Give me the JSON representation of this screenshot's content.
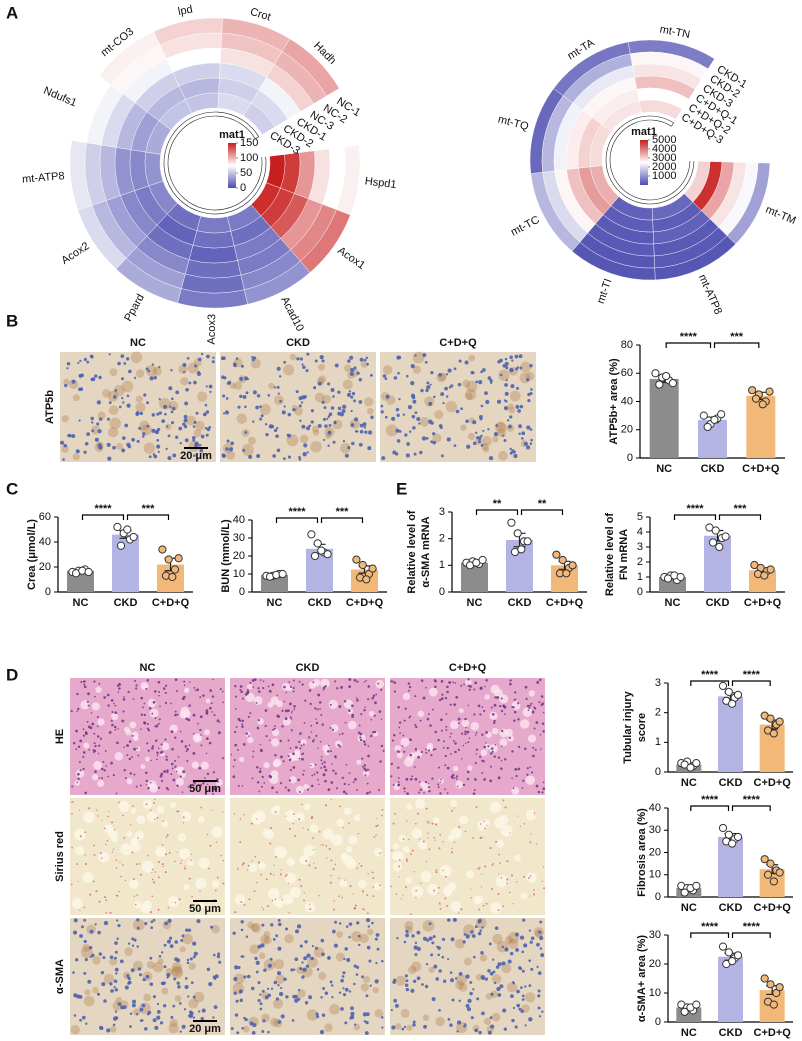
{
  "panels": [
    "A",
    "B",
    "C",
    "D",
    "E"
  ],
  "heatmaps": [
    {
      "legend_title": "mat1",
      "colorlim": [
        0,
        150
      ],
      "ticks": [
        0,
        50,
        100,
        150
      ],
      "colors": [
        "#4b4bb0",
        "#ffffff",
        "#c81e1e"
      ],
      "samples": [
        "NC-1",
        "NC-2",
        "NC-3",
        "CKD-1",
        "CKD-2",
        "CKD-3"
      ],
      "genes": [
        "Hspd1",
        "Acox1",
        "Acad10",
        "Acox3",
        "Ppard",
        "Acox2",
        "mt-ATP8",
        "Ndufs1",
        "mt-CO3",
        "lpd",
        "Crot",
        "Hadh"
      ],
      "values": [
        [
          80,
          75,
          85,
          110,
          140,
          150
        ],
        [
          120,
          115,
          110,
          130,
          140,
          145
        ],
        [
          30,
          25,
          20,
          20,
          15,
          20
        ],
        [
          20,
          15,
          15,
          10,
          15,
          20
        ],
        [
          40,
          35,
          25,
          15,
          10,
          15
        ],
        [
          60,
          45,
          35,
          25,
          20,
          25
        ],
        [
          65,
          55,
          45,
          30,
          25,
          30
        ],
        [
          75,
          70,
          60,
          45,
          35,
          40
        ],
        [
          80,
          78,
          70,
          55,
          45,
          50
        ],
        [
          90,
          85,
          75,
          55,
          45,
          50
        ],
        [
          100,
          95,
          85,
          60,
          55,
          60
        ],
        [
          105,
          100,
          90,
          70,
          60,
          55
        ]
      ]
    },
    {
      "legend_title": "mat1",
      "colorlim": [
        0,
        5000
      ],
      "ticks": [
        1000,
        2000,
        3000,
        4000,
        5000
      ],
      "colors": [
        "#4b4bb0",
        "#ffffff",
        "#c81e1e"
      ],
      "samples": [
        "CKD-1",
        "CKD-2",
        "CKD-3",
        "C+D+Q-1",
        "C+D+Q-2",
        "C+D+Q-3"
      ],
      "genes": [
        "mt-TM",
        "mt-ATP8",
        "mt-TI",
        "mt-TC",
        "mt-TQ",
        "mt-TA",
        "mt-TN"
      ],
      "values": [
        [
          1200,
          2400,
          2800,
          3500,
          4800,
          3000
        ],
        [
          150,
          200,
          200,
          300,
          250,
          400
        ],
        [
          150,
          150,
          200,
          200,
          250,
          300
        ],
        [
          1500,
          2000,
          2600,
          3200,
          3600,
          3400
        ],
        [
          400,
          1500,
          2300,
          2700,
          3000,
          2900
        ],
        [
          600,
          1400,
          2200,
          2600,
          2700,
          2800
        ],
        [
          700,
          2600,
          2800,
          3200,
          2500,
          2900
        ]
      ]
    }
  ],
  "micrographs": [
    {
      "columns": [
        "NC",
        "CKD",
        "C+D+Q"
      ],
      "rows": [
        "ATP5b"
      ],
      "scale_bars": [
        "20 μm"
      ]
    },
    {
      "columns": [
        "NC",
        "CKD",
        "C+D+Q"
      ],
      "rows": [
        "HE",
        "Sirius red",
        "α-SMA"
      ],
      "scale_bars": [
        "50 μm",
        "50 μm",
        "20 μm"
      ]
    }
  ],
  "chart_data": [
    {
      "type": "bar",
      "ylabel": [
        "ATP5b+ area (%)"
      ],
      "categories": [
        "NC",
        "CKD",
        "C+D+Q"
      ],
      "colors": [
        "#8c8c8c",
        "#b4b4e4",
        "#f2b878"
      ],
      "values": [
        56,
        27,
        44
      ],
      "errors": [
        2.5,
        2,
        2.5
      ],
      "points": [
        [
          60,
          57,
          55,
          52,
          58,
          53
        ],
        [
          30,
          24,
          28,
          22,
          27,
          31
        ],
        [
          48,
          45,
          40,
          42,
          38,
          47
        ]
      ],
      "ylim": [
        0,
        80
      ],
      "yticks": [
        0,
        20,
        40,
        60,
        80
      ],
      "significance": [
        "****",
        "***"
      ]
    },
    {
      "type": "bar",
      "ylabel": [
        "Crea (μmol/L)"
      ],
      "categories": [
        "NC",
        "CKD",
        "C+D+Q"
      ],
      "colors": [
        "#8c8c8c",
        "#b4b4e4",
        "#f2b878"
      ],
      "values": [
        17,
        46,
        22
      ],
      "errors": [
        1,
        3,
        5
      ],
      "points": [
        [
          16,
          17,
          18,
          15,
          17,
          16
        ],
        [
          52,
          47,
          42,
          37,
          50,
          44
        ],
        [
          34,
          26,
          18,
          13,
          12,
          27
        ]
      ],
      "ylim": [
        0,
        60
      ],
      "yticks": [
        0,
        20,
        40,
        60
      ],
      "significance": [
        "****",
        "***"
      ]
    },
    {
      "type": "bar",
      "ylabel": [
        "BUN (mmol/L)"
      ],
      "categories": [
        "NC",
        "CKD",
        "C+D+Q"
      ],
      "colors": [
        "#8c8c8c",
        "#b4b4e4",
        "#f2b878"
      ],
      "values": [
        9.5,
        24,
        12.5
      ],
      "errors": [
        0.5,
        2.5,
        2
      ],
      "points": [
        [
          9,
          9,
          10,
          8.5,
          9.5,
          10
        ],
        [
          32,
          27,
          22,
          20,
          23,
          21
        ],
        [
          18,
          15,
          10,
          8,
          7,
          13
        ]
      ],
      "ylim": [
        0,
        40
      ],
      "yticks": [
        0,
        10,
        20,
        30,
        40
      ],
      "significance": [
        "****",
        "***"
      ]
    },
    {
      "type": "bar",
      "ylabel": [
        "Relative level of",
        "α-SMA mRNA"
      ],
      "categories": [
        "NC",
        "CKD",
        "C+D+Q"
      ],
      "colors": [
        "#8c8c8c",
        "#b4b4e4",
        "#f2b878"
      ],
      "values": [
        1.1,
        1.95,
        1.0
      ],
      "errors": [
        0.05,
        0.25,
        0.15
      ],
      "points": [
        [
          1.1,
          1.15,
          1.05,
          1.0,
          1.1,
          1.2
        ],
        [
          2.6,
          2.2,
          1.9,
          1.5,
          1.6,
          1.9
        ],
        [
          1.4,
          1.2,
          0.9,
          0.7,
          0.7,
          1.0
        ]
      ],
      "ylim": [
        0,
        3
      ],
      "yticks": [
        0,
        1,
        2,
        3
      ],
      "significance": [
        "**",
        "**"
      ]
    },
    {
      "type": "bar",
      "ylabel": [
        "Relative level of",
        "FN mRNA"
      ],
      "categories": [
        "NC",
        "CKD",
        "C+D+Q"
      ],
      "colors": [
        "#8c8c8c",
        "#b4b4e4",
        "#f2b878"
      ],
      "values": [
        1.0,
        3.75,
        1.45
      ],
      "errors": [
        0.1,
        0.35,
        0.15
      ],
      "points": [
        [
          1.0,
          1.1,
          0.8,
          0.9,
          1.1,
          1.0
        ],
        [
          4.3,
          4.1,
          3.6,
          3.3,
          3.0,
          3.7
        ],
        [
          1.8,
          1.6,
          1.4,
          1.2,
          1.1,
          1.5
        ]
      ],
      "ylim": [
        0,
        5
      ],
      "yticks": [
        0,
        1,
        2,
        3,
        4,
        5
      ],
      "significance": [
        "****",
        "***"
      ]
    },
    {
      "type": "bar",
      "ylabel": [
        "Tubular injury",
        "score"
      ],
      "categories": [
        "NC",
        "CKD",
        "C+D+Q"
      ],
      "colors": [
        "#8c8c8c",
        "#b4b4e4",
        "#f2b878"
      ],
      "values": [
        0.25,
        2.55,
        1.6
      ],
      "errors": [
        0.05,
        0.12,
        0.15
      ],
      "points": [
        [
          0.3,
          0.35,
          0.2,
          0.25,
          0.15,
          0.3
        ],
        [
          2.9,
          2.7,
          2.5,
          2.4,
          2.3,
          2.6
        ],
        [
          1.9,
          1.8,
          1.6,
          1.4,
          1.3,
          1.7
        ]
      ],
      "ylim": [
        0,
        3
      ],
      "yticks": [
        0,
        1,
        2,
        3
      ],
      "significance": [
        "****",
        "****"
      ]
    },
    {
      "type": "bar",
      "ylabel": [
        "Fibrosis area (%)"
      ],
      "categories": [
        "NC",
        "CKD",
        "C+D+Q"
      ],
      "colors": [
        "#8c8c8c",
        "#b4b4e4",
        "#f2b878"
      ],
      "values": [
        4,
        27,
        12.5
      ],
      "errors": [
        0.8,
        1.5,
        2
      ],
      "points": [
        [
          5,
          4,
          3,
          2,
          4,
          5
        ],
        [
          31,
          28,
          26,
          25,
          24,
          27
        ],
        [
          17,
          15,
          12,
          10,
          7,
          11
        ]
      ],
      "ylim": [
        0,
        40
      ],
      "yticks": [
        0,
        10,
        20,
        30,
        40
      ],
      "significance": [
        "****",
        "****"
      ]
    },
    {
      "type": "bar",
      "ylabel": [
        "α-SMA+ area (%)"
      ],
      "categories": [
        "NC",
        "CKD",
        "C+D+Q"
      ],
      "colors": [
        "#8c8c8c",
        "#b4b4e4",
        "#f2b878"
      ],
      "values": [
        5,
        22.5,
        11
      ],
      "errors": [
        0.5,
        1.2,
        1.5
      ],
      "points": [
        [
          6,
          5,
          4,
          3.5,
          5,
          6
        ],
        [
          26,
          24,
          22,
          20,
          21,
          23
        ],
        [
          15,
          13,
          10,
          7,
          6,
          12
        ]
      ],
      "ylim": [
        0,
        30
      ],
      "yticks": [
        0,
        10,
        20,
        30
      ],
      "significance": [
        "****",
        "****"
      ]
    }
  ]
}
